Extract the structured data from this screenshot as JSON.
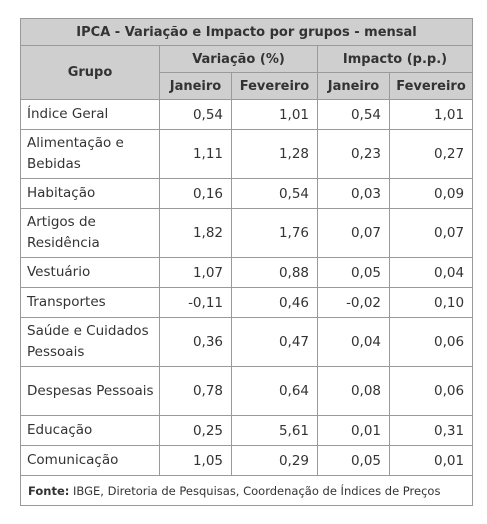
{
  "table": {
    "title": "IPCA - Variação e Impacto por grupos - mensal",
    "header": {
      "group_label": "Grupo",
      "variation_label": "Variação (%)",
      "impact_label": "Impacto (p.p.)",
      "month1": "Janeiro",
      "month2": "Fevereiro"
    },
    "rows": [
      {
        "name": "Índice Geral",
        "var_jan": "0,54",
        "var_fev": "1,01",
        "imp_jan": "0,54",
        "imp_fev": "1,01"
      },
      {
        "name": "Alimentação e Bebidas",
        "var_jan": "1,11",
        "var_fev": "1,28",
        "imp_jan": "0,23",
        "imp_fev": "0,27"
      },
      {
        "name": "Habitação",
        "var_jan": "0,16",
        "var_fev": "0,54",
        "imp_jan": "0,03",
        "imp_fev": "0,09"
      },
      {
        "name": "Artigos de Residência",
        "var_jan": "1,82",
        "var_fev": "1,76",
        "imp_jan": "0,07",
        "imp_fev": "0,07"
      },
      {
        "name": "Vestuário",
        "var_jan": "1,07",
        "var_fev": "0,88",
        "imp_jan": "0,05",
        "imp_fev": "0,04"
      },
      {
        "name": "Transportes",
        "var_jan": "-0,11",
        "var_fev": "0,46",
        "imp_jan": "-0,02",
        "imp_fev": "0,10"
      },
      {
        "name": "Saúde e Cuidados Pessoais",
        "var_jan": "0,36",
        "var_fev": "0,47",
        "imp_jan": "0,04",
        "imp_fev": "0,06"
      },
      {
        "name": "Despesas Pessoais",
        "var_jan": "0,78",
        "var_fev": "0,64",
        "imp_jan": "0,08",
        "imp_fev": "0,06"
      },
      {
        "name": "Educação",
        "var_jan": "0,25",
        "var_fev": "5,61",
        "imp_jan": "0,01",
        "imp_fev": "0,31"
      },
      {
        "name": "Comunicação",
        "var_jan": "1,05",
        "var_fev": "0,29",
        "imp_jan": "0,05",
        "imp_fev": "0,01"
      }
    ],
    "source": {
      "label": "Fonte:",
      "text": " IBGE, Diretoria de Pesquisas, Coordenação de Índices de Preços"
    }
  }
}
